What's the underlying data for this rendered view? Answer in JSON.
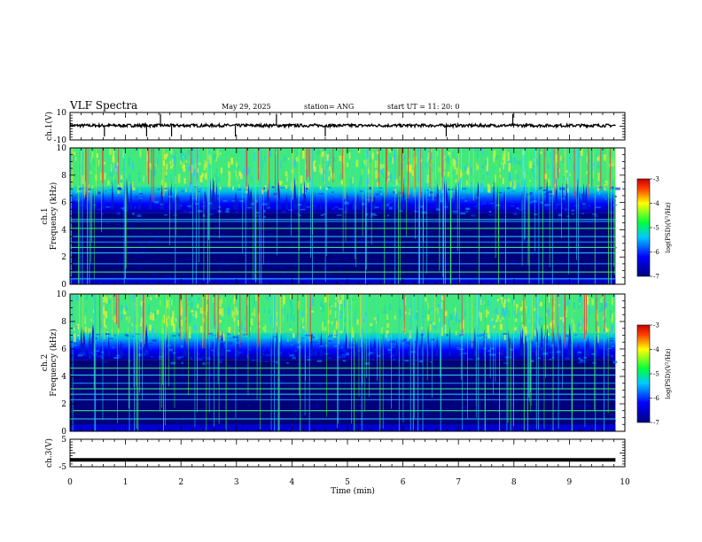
{
  "header": {
    "title": "VLF Spectra",
    "date": "May 29, 2025",
    "station": "station= ANG",
    "start": "start  UT  =   11: 20: 0"
  },
  "colorbar": {
    "label": "log(PSD)(V²/Hz)",
    "ticks": [
      "-3",
      "-4",
      "-5",
      "-6",
      "-7"
    ],
    "colors": [
      "#cc0000",
      "#ffff00",
      "#00ff40",
      "#00c0ff",
      "#000080"
    ]
  },
  "chart_data": [
    {
      "type": "line",
      "ylabel": "ch.1(V)",
      "ylim": [
        -10,
        10
      ],
      "yticks": [
        "10",
        "-10"
      ],
      "xlim": [
        0,
        10
      ],
      "description_values": {
        "baseline": 0.5,
        "spike_times_min": [
          0.62,
          1.38,
          1.63,
          1.83,
          2.98,
          3.72,
          4.6,
          6.78,
          7.98
        ]
      }
    },
    {
      "type": "heatmap",
      "ylabel": "ch.1\nFrequency (kHz)",
      "ylim": [
        0,
        10
      ],
      "yticks": [
        "0",
        "2",
        "4",
        "6",
        "8",
        "10"
      ],
      "xlim": [
        0,
        10
      ],
      "data_xlim": [
        0,
        9.83
      ],
      "band_lines_khz": [
        0.4,
        0.9,
        1.5,
        2.3,
        2.7,
        3.1,
        3.5,
        4.1,
        4.6,
        4.75
      ]
    },
    {
      "type": "heatmap",
      "ylabel": "ch.2\nFrequency (kHz)",
      "ylim": [
        0,
        10
      ],
      "yticks": [
        "0",
        "2",
        "4",
        "6",
        "8",
        "10"
      ],
      "xlim": [
        0,
        10
      ],
      "data_xlim": [
        0,
        9.83
      ],
      "band_lines_khz": [
        0.9,
        1.5,
        2.3,
        2.7,
        3.1,
        3.5,
        4.1,
        4.6
      ]
    },
    {
      "type": "line",
      "ylabel": "ch.3(V)",
      "ylim": [
        -5,
        5
      ],
      "yticks": [
        "5",
        "-5"
      ],
      "xlim": [
        0,
        10
      ],
      "series": [
        {
          "x": [
            0,
            9.83
          ],
          "values": [
            -2.5,
            -2.5
          ]
        }
      ]
    }
  ],
  "xaxis": {
    "label": "Time (min)",
    "ticks": [
      "0",
      "1",
      "2",
      "3",
      "4",
      "5",
      "6",
      "7",
      "8",
      "9",
      "10"
    ]
  }
}
